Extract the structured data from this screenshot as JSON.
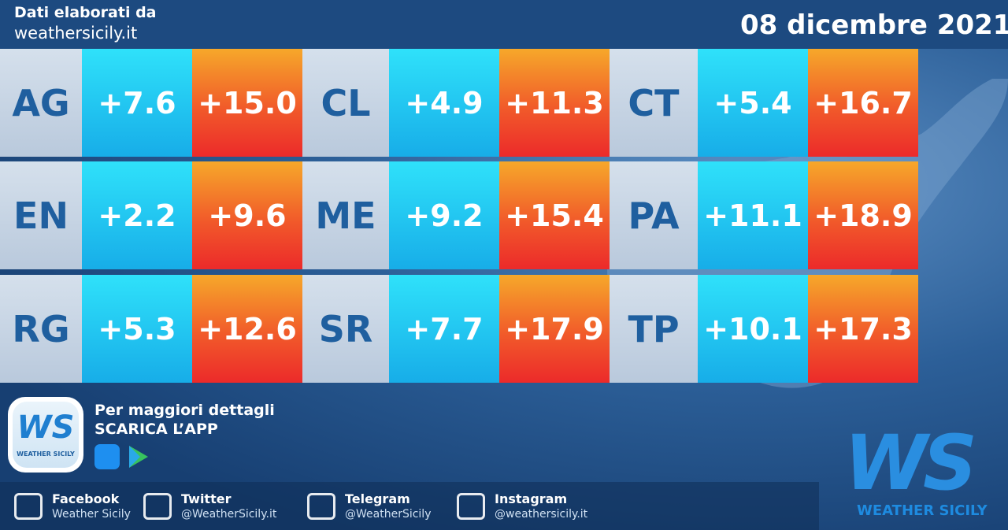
{
  "header": {
    "source_label": "Dati elaborati da",
    "source_site": "weathersicily.it",
    "date": "08 dicembre 2021"
  },
  "table": {
    "rows": [
      [
        {
          "province": "AG",
          "min": "+7.6",
          "max": "+15.0"
        },
        {
          "province": "CL",
          "min": "+4.9",
          "max": "+11.3"
        },
        {
          "province": "CT",
          "min": "+5.4",
          "max": "+16.7"
        }
      ],
      [
        {
          "province": "EN",
          "min": "+2.2",
          "max": "+9.6"
        },
        {
          "province": "ME",
          "min": "+9.2",
          "max": "+15.4"
        },
        {
          "province": "PA",
          "min": "+11.1",
          "max": "+18.9"
        }
      ],
      [
        {
          "province": "RG",
          "min": "+5.3",
          "max": "+12.6"
        },
        {
          "province": "SR",
          "min": "+7.7",
          "max": "+17.9"
        },
        {
          "province": "TP",
          "min": "+10.1",
          "max": "+17.3"
        }
      ]
    ]
  },
  "app": {
    "logo_text": "WS",
    "logo_caption": "WEATHER SICILY",
    "line1": "Per maggiori dettagli",
    "line2": "SCARICA L’APP"
  },
  "social": [
    {
      "network": "Facebook",
      "handle": "Weather Sicily"
    },
    {
      "network": "Twitter",
      "handle": "@WeatherSicily.it"
    },
    {
      "network": "Telegram",
      "handle": "@WeatherSicily"
    },
    {
      "network": "Instagram",
      "handle": "@weathersicily.it"
    }
  ],
  "brand": {
    "logo_text": "WS",
    "name": "WEATHER SICILY"
  }
}
